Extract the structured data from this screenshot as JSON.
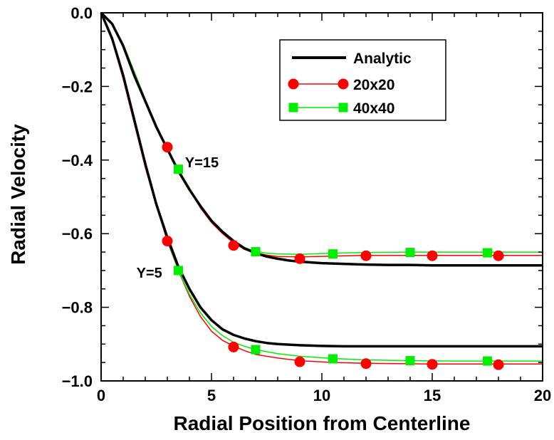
{
  "chart_data": {
    "type": "line",
    "title": "",
    "xlabel": "Radial Position from Centerline",
    "ylabel": "Radial Velocity",
    "xlim": [
      0,
      20
    ],
    "ylim": [
      -1.0,
      0.0
    ],
    "x_ticks": [
      0,
      5,
      10,
      15,
      20
    ],
    "x_tick_labels": [
      "0",
      "5",
      "10",
      "15",
      "20"
    ],
    "y_ticks": [
      0.0,
      -0.2,
      -0.4,
      -0.6,
      -0.8,
      -1.0
    ],
    "y_tick_labels": [
      "0.0",
      "−0.2",
      "−0.4",
      "−0.6",
      "−0.8",
      "−1.0"
    ],
    "grid": false,
    "legend_position": "top-right",
    "legend": [
      {
        "label": "Analytic",
        "style": "line",
        "color": "#000000"
      },
      {
        "label": "20x20",
        "style": "line-circle",
        "color": "#ff0000"
      },
      {
        "label": "40x40",
        "style": "line-square",
        "color": "#00ee00"
      }
    ],
    "annotations": [
      {
        "text": "Y=15",
        "x": 3.8,
        "y": -0.42
      },
      {
        "text": "Y=5",
        "x": 1.6,
        "y": -0.72
      }
    ],
    "series": [
      {
        "group": "Y=15",
        "legend": "Analytic",
        "color": "#000000",
        "marker": "none",
        "x": [
          0,
          0.5,
          1,
          1.5,
          2,
          2.5,
          3,
          3.5,
          4,
          4.5,
          5,
          5.5,
          6,
          6.5,
          7,
          7.5,
          8,
          8.5,
          9,
          10,
          11,
          12,
          13,
          14,
          15,
          16,
          17,
          18,
          19,
          20
        ],
        "values": [
          0.0,
          -0.03,
          -0.09,
          -0.17,
          -0.24,
          -0.31,
          -0.37,
          -0.43,
          -0.48,
          -0.525,
          -0.565,
          -0.595,
          -0.62,
          -0.64,
          -0.653,
          -0.662,
          -0.668,
          -0.673,
          -0.676,
          -0.68,
          -0.682,
          -0.684,
          -0.685,
          -0.685,
          -0.686,
          -0.686,
          -0.686,
          -0.686,
          -0.686,
          -0.686
        ]
      },
      {
        "group": "Y=15",
        "legend": "20x20",
        "color": "#ff0000",
        "marker": "circle",
        "x": [
          0,
          0.5,
          1,
          1.5,
          2,
          2.5,
          3,
          3.5,
          4,
          4.5,
          5,
          5.5,
          6,
          6.5,
          7,
          7.5,
          8,
          9,
          10.5,
          12,
          13.5,
          15,
          16.5,
          18,
          20
        ],
        "values": [
          0.0,
          -0.028,
          -0.085,
          -0.16,
          -0.235,
          -0.305,
          -0.37,
          -0.43,
          -0.48,
          -0.53,
          -0.57,
          -0.6,
          -0.625,
          -0.643,
          -0.652,
          -0.658,
          -0.662,
          -0.663,
          -0.661,
          -0.659,
          -0.659,
          -0.659,
          -0.659,
          -0.659,
          -0.659
        ],
        "marker_x": [
          3,
          6,
          9,
          12,
          15,
          18
        ],
        "marker_values": [
          -0.365,
          -0.632,
          -0.668,
          -0.66,
          -0.66,
          -0.66
        ]
      },
      {
        "group": "Y=15",
        "legend": "40x40",
        "color": "#00ee00",
        "marker": "square",
        "x": [
          0,
          0.5,
          1,
          1.5,
          2,
          2.5,
          3,
          3.5,
          4,
          4.5,
          5,
          5.5,
          6,
          6.5,
          7,
          7.5,
          8,
          9,
          10.5,
          12,
          14,
          16,
          17.5,
          20
        ],
        "values": [
          0.0,
          -0.028,
          -0.085,
          -0.16,
          -0.235,
          -0.305,
          -0.37,
          -0.425,
          -0.475,
          -0.525,
          -0.565,
          -0.595,
          -0.62,
          -0.638,
          -0.648,
          -0.653,
          -0.655,
          -0.656,
          -0.653,
          -0.651,
          -0.65,
          -0.65,
          -0.65,
          -0.65
        ],
        "marker_x": [
          3.5,
          7,
          10.5,
          14,
          17.5
        ],
        "marker_values": [
          -0.425,
          -0.649,
          -0.655,
          -0.651,
          -0.652
        ]
      },
      {
        "group": "Y=5",
        "legend": "Analytic",
        "color": "#000000",
        "marker": "none",
        "x": [
          0,
          0.5,
          1,
          1.5,
          2,
          2.5,
          3,
          3.5,
          4,
          4.5,
          5,
          5.5,
          6,
          6.5,
          7,
          7.5,
          8,
          9,
          10,
          11,
          12,
          14,
          16,
          18,
          20
        ],
        "values": [
          0.0,
          -0.07,
          -0.17,
          -0.29,
          -0.41,
          -0.52,
          -0.61,
          -0.69,
          -0.75,
          -0.8,
          -0.835,
          -0.86,
          -0.875,
          -0.885,
          -0.892,
          -0.897,
          -0.9,
          -0.903,
          -0.905,
          -0.906,
          -0.906,
          -0.906,
          -0.906,
          -0.906,
          -0.906
        ]
      },
      {
        "group": "Y=5",
        "legend": "20x20",
        "color": "#ff0000",
        "marker": "circle",
        "x": [
          0,
          0.5,
          1,
          1.5,
          2,
          2.5,
          3,
          3.5,
          4,
          4.5,
          5,
          5.5,
          6,
          6.5,
          7,
          8,
          9,
          10.5,
          12,
          13.5,
          15,
          16.5,
          18,
          20
        ],
        "values": [
          0.0,
          -0.075,
          -0.18,
          -0.3,
          -0.42,
          -0.525,
          -0.62,
          -0.7,
          -0.77,
          -0.825,
          -0.865,
          -0.89,
          -0.905,
          -0.918,
          -0.928,
          -0.938,
          -0.945,
          -0.95,
          -0.952,
          -0.953,
          -0.954,
          -0.954,
          -0.954,
          -0.954
        ],
        "marker_x": [
          3,
          6,
          9,
          12,
          15,
          18
        ],
        "marker_values": [
          -0.62,
          -0.908,
          -0.948,
          -0.953,
          -0.955,
          -0.956
        ]
      },
      {
        "group": "Y=5",
        "legend": "40x40",
        "color": "#00ee00",
        "marker": "square",
        "x": [
          0,
          0.5,
          1,
          1.5,
          2,
          2.5,
          3,
          3.5,
          4,
          4.5,
          5,
          5.5,
          6,
          6.5,
          7,
          8,
          9,
          10.5,
          12,
          14,
          16,
          17.5,
          20
        ],
        "values": [
          0.0,
          -0.072,
          -0.175,
          -0.295,
          -0.415,
          -0.52,
          -0.615,
          -0.7,
          -0.765,
          -0.815,
          -0.852,
          -0.877,
          -0.895,
          -0.906,
          -0.915,
          -0.926,
          -0.933,
          -0.939,
          -0.943,
          -0.945,
          -0.946,
          -0.946,
          -0.946
        ],
        "marker_x": [
          3.5,
          7,
          10.5,
          14,
          17.5
        ],
        "marker_values": [
          -0.7,
          -0.915,
          -0.94,
          -0.945,
          -0.946
        ]
      }
    ]
  }
}
